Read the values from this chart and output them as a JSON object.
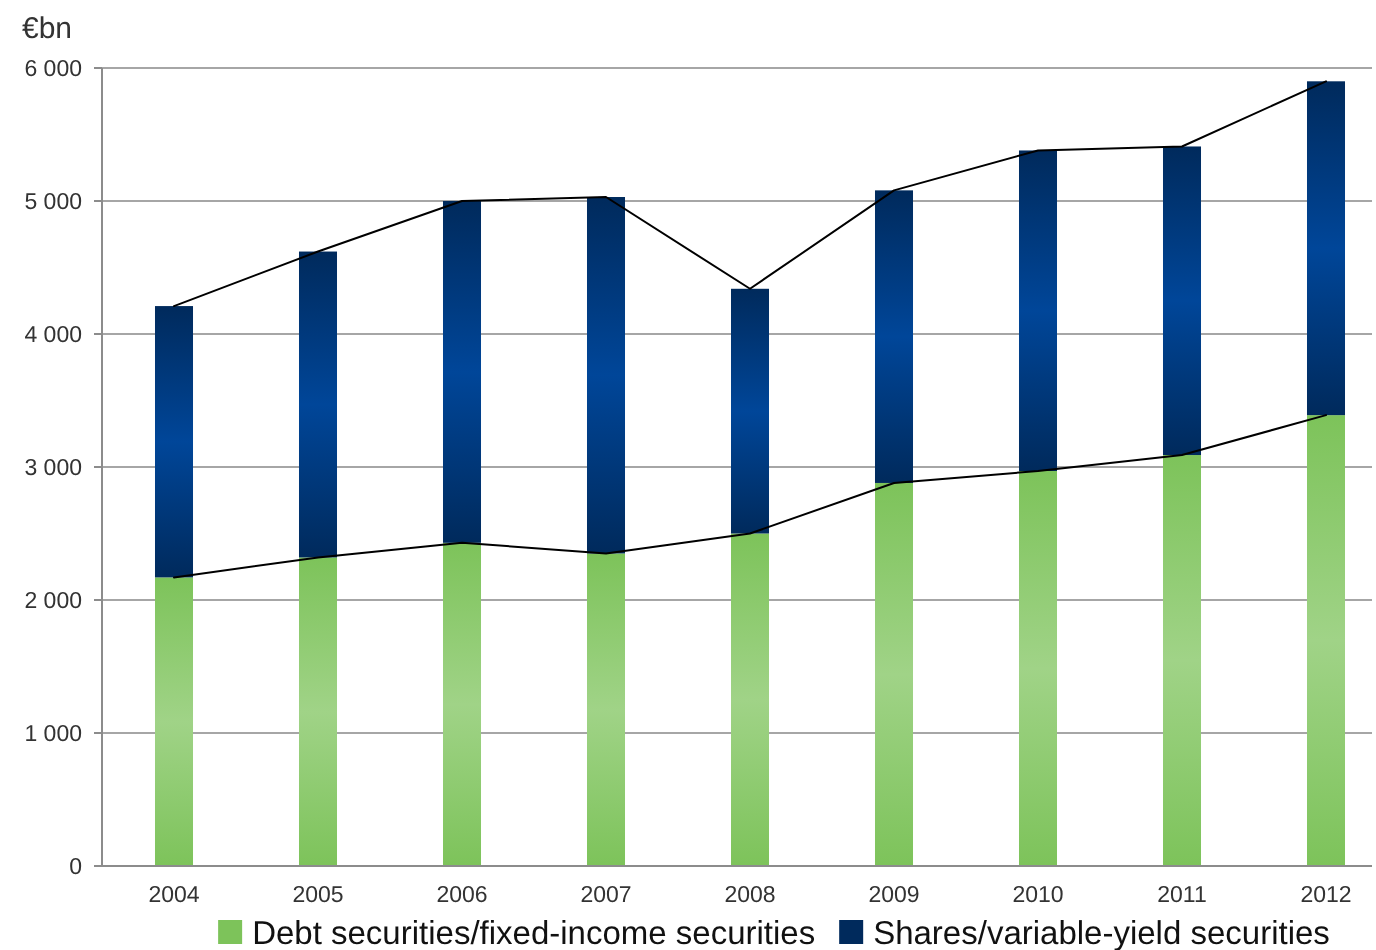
{
  "chart_data": {
    "type": "bar",
    "stacked": true,
    "ylabel": "€bn",
    "categories": [
      "2004",
      "2005",
      "2006",
      "2007",
      "2008",
      "2009",
      "2010",
      "2011",
      "2012"
    ],
    "series": [
      {
        "name": "Debt securities/fixed-income securities",
        "color": "#7dc35a",
        "values": [
          2170,
          2320,
          2430,
          2350,
          2500,
          2880,
          2970,
          3090,
          3390
        ]
      },
      {
        "name": "Shares/variable-yield securities",
        "color": "#002a5c",
        "values": [
          2040,
          2300,
          2570,
          2680,
          1840,
          2200,
          2410,
          2320,
          2510
        ]
      },
      {
        "type": "line",
        "color": "#000000",
        "values": [
          2170,
          2320,
          2430,
          2350,
          2500,
          2880,
          2970,
          3090,
          3390
        ]
      },
      {
        "type": "line",
        "color": "#000000",
        "values": [
          4210,
          4620,
          5000,
          5030,
          4340,
          5080,
          5380,
          5410,
          5900
        ]
      }
    ],
    "ylim": [
      0,
      6000
    ],
    "yticks": [
      {
        "value": 0,
        "label": "0"
      },
      {
        "value": 1000,
        "label": "1 000"
      },
      {
        "value": 2000,
        "label": "2 000"
      },
      {
        "value": 3000,
        "label": "3 000"
      },
      {
        "value": 4000,
        "label": "4 000"
      },
      {
        "value": 5000,
        "label": "5 000"
      },
      {
        "value": 6000,
        "label": "6 000"
      }
    ],
    "grid": "y",
    "legend": "bottom"
  }
}
